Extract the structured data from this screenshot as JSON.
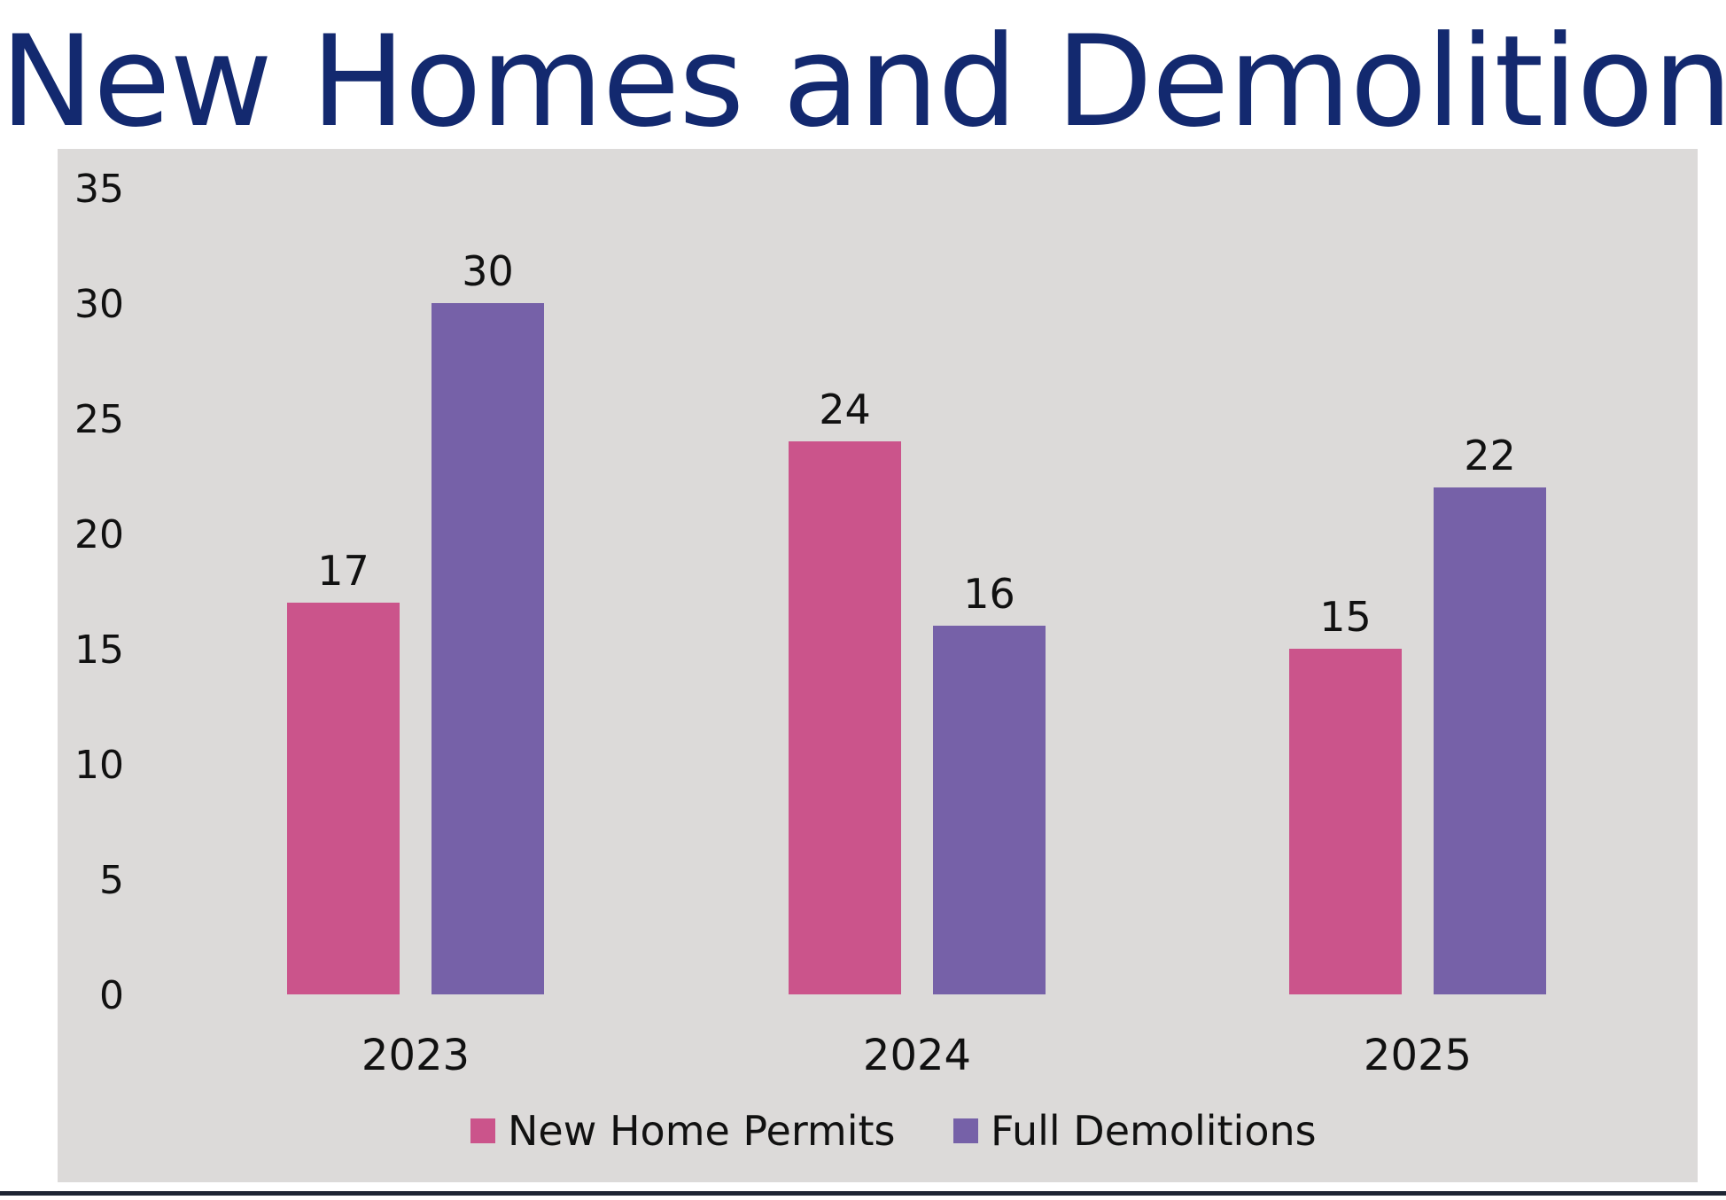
{
  "chart_data": {
    "type": "bar",
    "title": "New Homes and Demolitions",
    "categories": [
      "2023",
      "2024",
      "2025"
    ],
    "series": [
      {
        "name": "New Home Permits",
        "values": [
          17,
          24,
          15
        ],
        "color": "#cb548b"
      },
      {
        "name": "Full Demolitions",
        "values": [
          30,
          16,
          22
        ],
        "color": "#7661a8"
      }
    ],
    "ylim": [
      0,
      35
    ],
    "yticks": [
      "0",
      "5",
      "10",
      "15",
      "20",
      "25",
      "30",
      "35"
    ],
    "grid": false,
    "legend": "bottom-center",
    "data_labels": true,
    "plot_background": "#dcdad9",
    "title_color": "#13296f"
  }
}
